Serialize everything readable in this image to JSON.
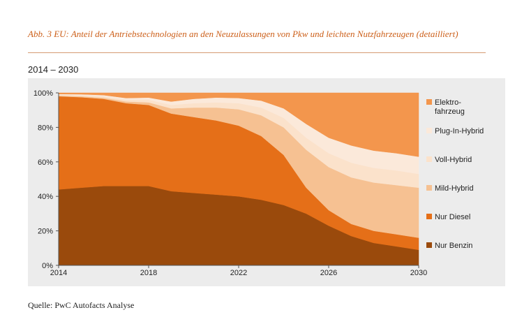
{
  "figure": {
    "title": "Abb. 3 EU: Anteil der Antriebstechnologien an den Neuzulassungen von Pkw und leichten Nutzfahrzeugen (detailliert)",
    "subtitle": "2014 – 2030",
    "source": "Quelle: PwC Autofacts Analyse"
  },
  "colors": {
    "benzin": "#9a4a0c",
    "diesel": "#e56f18",
    "mild": "#f6c192",
    "voll": "#fbe2cb",
    "plugin": "#fbe9da",
    "elektro": "#f3964d",
    "title": "#cc5f19",
    "panel": "#ececec"
  },
  "chart_data": {
    "type": "area",
    "stacked": true,
    "x": [
      2014,
      2015,
      2016,
      2017,
      2018,
      2019,
      2020,
      2021,
      2022,
      2023,
      2024,
      2025,
      2026,
      2027,
      2028,
      2029,
      2030
    ],
    "series": [
      {
        "name": "Nur Benzin",
        "key": "benzin",
        "values": [
          44,
          45,
          46,
          46,
          46,
          43,
          42,
          41,
          40,
          38,
          35,
          30,
          23,
          17,
          13,
          11,
          9
        ]
      },
      {
        "name": "Nur Diesel",
        "key": "diesel",
        "values": [
          54,
          52.5,
          50.5,
          48,
          47,
          45,
          44,
          43,
          41,
          37,
          29,
          15,
          9,
          7,
          7,
          7,
          7
        ]
      },
      {
        "name": "Mild-Hybrid",
        "key": "mild",
        "values": [
          0.5,
          0.5,
          0.7,
          1,
          1.5,
          3,
          5.5,
          7.5,
          9.5,
          12,
          16,
          22,
          25,
          27,
          28,
          28.5,
          29
        ]
      },
      {
        "name": "Voll-Hybrid",
        "key": "voll",
        "values": [
          0.5,
          0.7,
          0.8,
          1,
          1.5,
          2,
          2.5,
          3,
          3.5,
          4.5,
          5.5,
          7,
          8,
          8.5,
          8.5,
          8.5,
          8
        ]
      },
      {
        "name": "Plug-In-Hybrid",
        "key": "plugin",
        "values": [
          0.3,
          0.5,
          0.7,
          1,
          1.3,
          2,
          2.5,
          2.8,
          3,
          4,
          5.5,
          8,
          9,
          10,
          10,
          10,
          10
        ]
      },
      {
        "name": "Elektro-\nfahrzeug",
        "key": "elektro",
        "values": [
          0.7,
          0.8,
          1.3,
          3,
          2.7,
          5,
          3.5,
          2.7,
          3,
          4.5,
          9,
          18,
          26,
          30.5,
          33.5,
          35,
          37
        ]
      }
    ],
    "legend_order": [
      "elektro",
      "plugin",
      "voll",
      "mild",
      "diesel",
      "benzin"
    ],
    "y_ticks": [
      "0%",
      "20%",
      "40%",
      "60%",
      "80%",
      "100%"
    ],
    "x_ticks": [
      "2014",
      "2018",
      "2022",
      "2026",
      "2030"
    ],
    "ylim": [
      0,
      100
    ],
    "xlim": [
      2014,
      2030
    ],
    "grid": false,
    "legend_position": "right"
  }
}
